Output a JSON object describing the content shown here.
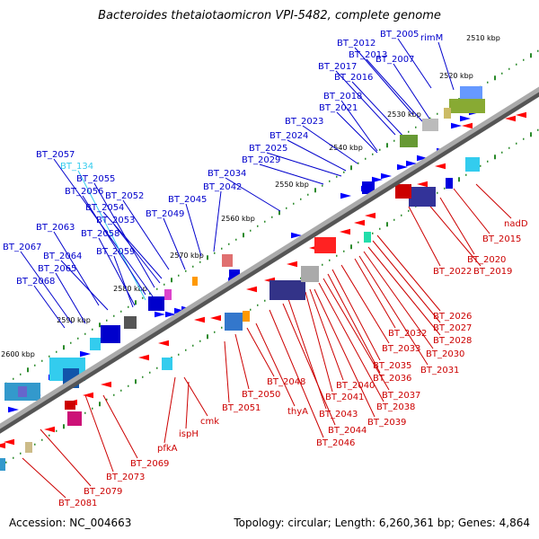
{
  "title": "Bacteroides thetaiotaomicron VPI-5482, complete genome",
  "footer": {
    "accession": "Accession: NC_004663",
    "topology": "Topology: circular; Length: 6,260,361 bp; Genes: 4,864"
  },
  "colors": {
    "forward_label": "#0000cc",
    "reverse_label": "#cc0000",
    "highlight_label": "#33ccee",
    "forward_gene": "#0000ff",
    "reverse_gene": "#ff0000",
    "backbone": "#888888",
    "tick_green": "#2a8a2a"
  },
  "scale_ticks": [
    "2510 kbp",
    "2520 kbp",
    "2530 kbp",
    "2540 kbp",
    "2550 kbp",
    "2560 kbp",
    "2570 kbp",
    "2580 kbp",
    "2590 kbp",
    "2600 kbp"
  ],
  "top_labels": [
    {
      "text": "BT_2005"
    },
    {
      "text": "rimM"
    },
    {
      "text": "BT_2012"
    },
    {
      "text": "BT_2013"
    },
    {
      "text": "BT_2007"
    },
    {
      "text": "BT_2017"
    },
    {
      "text": "BT_2016"
    },
    {
      "text": "BT_2018"
    },
    {
      "text": "BT_2021"
    },
    {
      "text": "BT_2023"
    },
    {
      "text": "BT_2024"
    },
    {
      "text": "BT_2025"
    },
    {
      "text": "BT_2029"
    },
    {
      "text": "BT_2034"
    },
    {
      "text": "BT_2042"
    },
    {
      "text": "BT_2045"
    },
    {
      "text": "BT_2049"
    },
    {
      "text": "BT_2052"
    },
    {
      "text": "BT_2054"
    },
    {
      "text": "BT_2053"
    },
    {
      "text": "BT_2057"
    },
    {
      "text": "BT_134",
      "highlight": true
    },
    {
      "text": "BT_2055"
    },
    {
      "text": "BT_2056"
    },
    {
      "text": "BT_2058"
    },
    {
      "text": "BT_2063"
    },
    {
      "text": "BT_2059"
    },
    {
      "text": "BT_2064"
    },
    {
      "text": "BT_2067"
    },
    {
      "text": "BT_2065"
    },
    {
      "text": "BT_2068"
    }
  ],
  "bottom_labels": [
    {
      "text": "nadD"
    },
    {
      "text": "BT_2015"
    },
    {
      "text": "BT_2020"
    },
    {
      "text": "BT_2019"
    },
    {
      "text": "BT_2022"
    },
    {
      "text": "BT_2026"
    },
    {
      "text": "BT_2027"
    },
    {
      "text": "BT_2028"
    },
    {
      "text": "BT_2030"
    },
    {
      "text": "BT_2031"
    },
    {
      "text": "BT_2032"
    },
    {
      "text": "BT_2033"
    },
    {
      "text": "BT_2035"
    },
    {
      "text": "BT_2036"
    },
    {
      "text": "BT_2037"
    },
    {
      "text": "BT_2038"
    },
    {
      "text": "BT_2039"
    },
    {
      "text": "BT_2040"
    },
    {
      "text": "BT_2041"
    },
    {
      "text": "BT_2043"
    },
    {
      "text": "BT_2044"
    },
    {
      "text": "BT_2046"
    },
    {
      "text": "BT_2048"
    },
    {
      "text": "thyA"
    },
    {
      "text": "BT_2050"
    },
    {
      "text": "BT_2051"
    },
    {
      "text": "cmk"
    },
    {
      "text": "ispH"
    },
    {
      "text": "pfkA"
    },
    {
      "text": "BT_2069"
    },
    {
      "text": "BT_2073"
    },
    {
      "text": "BT_2079"
    },
    {
      "text": "BT_2081"
    }
  ]
}
